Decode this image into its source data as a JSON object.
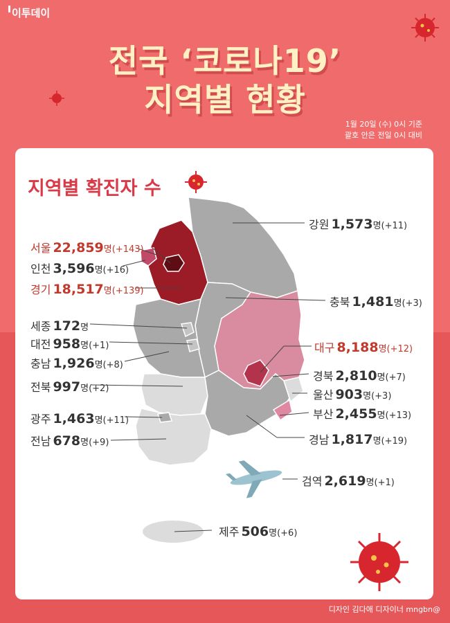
{
  "brand": "이투데이",
  "title_line1": "전국 ‘코로나19’",
  "title_line2": "지역별 현황",
  "basis_line1": "1월 20일 (수) 0시 기준",
  "basis_line2": "괄호 안은 전일 0시 대비",
  "card_title": "지역별 확진자 수",
  "credit": "디자인 김다애 디자이너 mngbn@",
  "unit": "명",
  "colors": {
    "background": "#f06b6b",
    "title": "#fff1c4",
    "accent": "#d93a48",
    "map_gray": "#a9a9a9",
    "map_light": "#dcdcdc",
    "map_pink": "#d98ca0",
    "map_dark": "#9b1c26"
  },
  "regions": {
    "seoul": {
      "name": "서울",
      "count": "22,859",
      "change": "(+143)"
    },
    "incheon": {
      "name": "인천",
      "count": "3,596",
      "change": "(+16)"
    },
    "gyeonggi": {
      "name": "경기",
      "count": "18,517",
      "change": "(+139)"
    },
    "sejong": {
      "name": "세종",
      "count": "172",
      "change": ""
    },
    "daejeon": {
      "name": "대전",
      "count": "958",
      "change": "(+1)"
    },
    "chungnam": {
      "name": "충남",
      "count": "1,926",
      "change": "(+8)"
    },
    "jeonbuk": {
      "name": "전북",
      "count": "997",
      "change": "(+2)"
    },
    "gwangju": {
      "name": "광주",
      "count": "1,463",
      "change": "(+11)"
    },
    "jeonnam": {
      "name": "전남",
      "count": "678",
      "change": "(+9)"
    },
    "gangwon": {
      "name": "강원",
      "count": "1,573",
      "change": "(+11)"
    },
    "chungbuk": {
      "name": "충북",
      "count": "1,481",
      "change": "(+3)"
    },
    "daegu": {
      "name": "대구",
      "count": "8,188",
      "change": "(+12)"
    },
    "gyeongbuk": {
      "name": "경북",
      "count": "2,810",
      "change": "(+7)"
    },
    "ulsan": {
      "name": "울산",
      "count": "903",
      "change": "(+3)"
    },
    "busan": {
      "name": "부산",
      "count": "2,455",
      "change": "(+13)"
    },
    "gyeongnam": {
      "name": "경남",
      "count": "1,817",
      "change": "(+19)"
    },
    "quarantine": {
      "name": "검역",
      "count": "2,619",
      "change": "(+1)"
    },
    "jeju": {
      "name": "제주",
      "count": "506",
      "change": "(+6)"
    }
  }
}
